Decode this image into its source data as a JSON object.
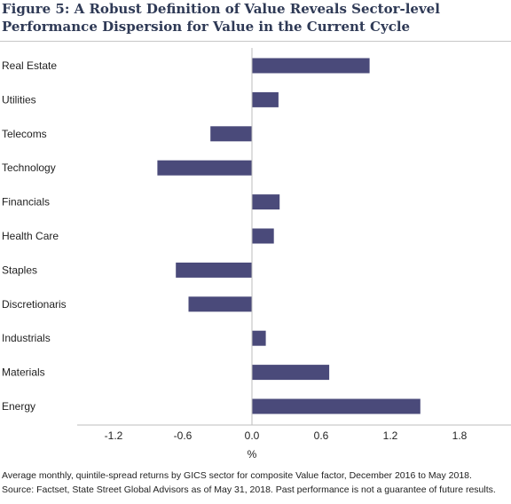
{
  "title": {
    "line1": "Figure 5: A Robust Definition of Value Reveals Sector-level",
    "line2": "Performance Dispersion for Value in the Current Cycle"
  },
  "chart_data": {
    "type": "bar",
    "orientation": "horizontal",
    "categories": [
      "Real Estate",
      "Utilities",
      "Telecoms",
      "Technology",
      "Financials",
      "Health Care",
      "Staples",
      "Discretionaris",
      "Industrials",
      "Materials",
      "Energy"
    ],
    "values": [
      1.02,
      0.23,
      -0.36,
      -0.82,
      0.24,
      0.19,
      -0.66,
      -0.55,
      0.12,
      0.67,
      1.46
    ],
    "xlabel": "%",
    "xlim": [
      -1.5,
      2.2
    ],
    "xticks": [
      -1.2,
      -0.6,
      0.0,
      0.6,
      1.2,
      1.8
    ],
    "xtick_labels": [
      "-1.2",
      "-0.6",
      "0.0",
      "0.6",
      "1.2",
      "1.8"
    ],
    "bar_color": "#4a4a7a",
    "grid": false,
    "legend": "none"
  },
  "footnote": {
    "line1": "Average monthly, quintile-spread returns by GICS sector for composite Value factor, December 2016 to May 2018.",
    "line2": "Source: Factset, State Street Global Advisors as of May 31, 2018.  Past performance is not a guarantee of future results."
  }
}
